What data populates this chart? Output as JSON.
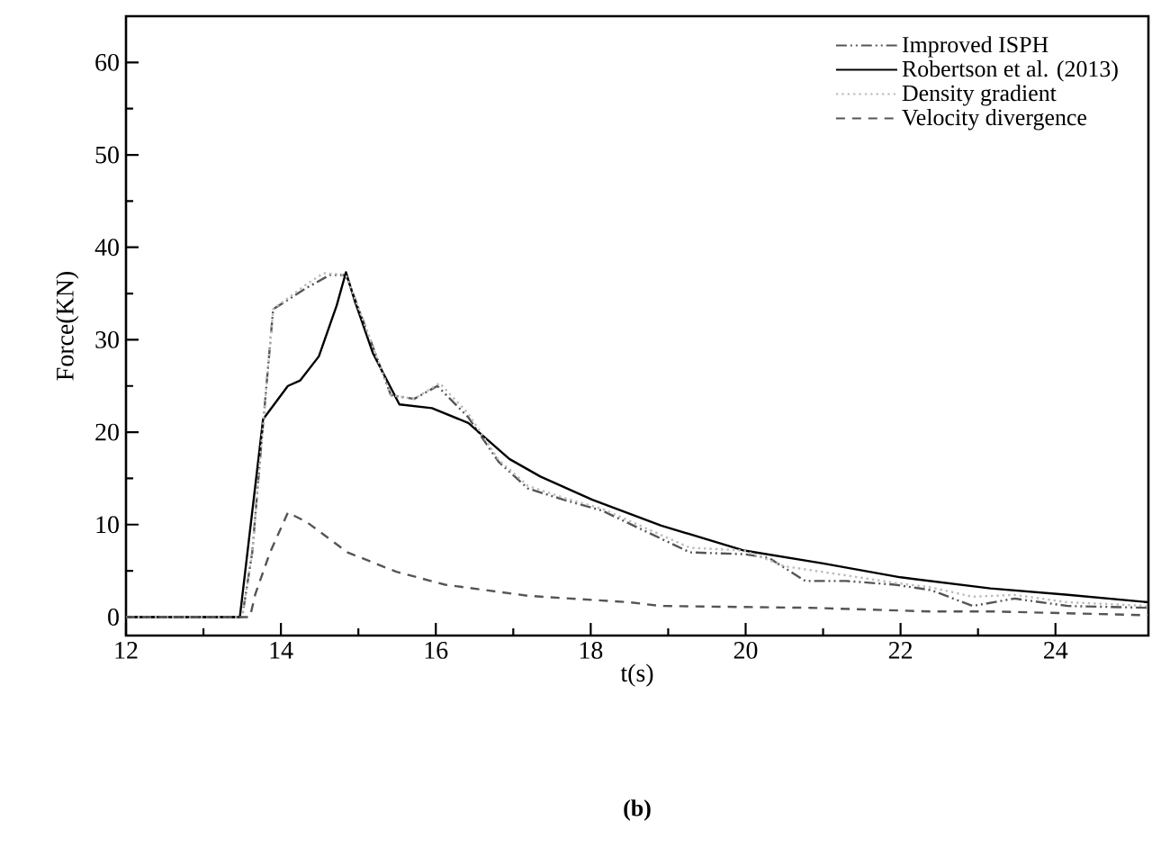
{
  "chart_data": {
    "type": "line",
    "xlabel": "t(s)",
    "ylabel": "Force(KN)",
    "annotations": [
      "(b)"
    ],
    "xlim": [
      12,
      25.2
    ],
    "ylim": [
      -2,
      65
    ],
    "xticks": [
      12,
      14,
      16,
      18,
      20,
      22,
      24
    ],
    "yticks": [
      0,
      10,
      20,
      30,
      40,
      50,
      60
    ],
    "legend": "top right",
    "grid": false,
    "series": [
      {
        "name": "Improved ISPH",
        "color": "#555555",
        "line_style": "dashdotdot",
        "x": [
          12,
          13.5,
          13.63,
          13.74,
          13.9,
          14.33,
          14.63,
          14.84,
          15.02,
          15.42,
          15.72,
          16.02,
          16.42,
          16.81,
          17.19,
          17.65,
          18.15,
          19.28,
          19.98,
          20.3,
          20.77,
          21.3,
          21.93,
          22.4,
          22.93,
          23.47,
          24.16,
          25.2
        ],
        "values": [
          0,
          0,
          7,
          18,
          33.3,
          35.6,
          37,
          37,
          33,
          24,
          23.6,
          25,
          21.6,
          16.8,
          13.9,
          12.7,
          11.5,
          7,
          6.8,
          6.4,
          3.9,
          3.9,
          3.5,
          2.9,
          1.2,
          2,
          1.2,
          1
        ]
      },
      {
        "name": "Robertson et al. (2013)",
        "color": "#000000",
        "line_style": "solid",
        "x": [
          12,
          13.47,
          13.77,
          14.09,
          14.25,
          14.49,
          14.72,
          14.84,
          14.95,
          15.19,
          15.53,
          15.95,
          16.42,
          16.95,
          17.35,
          18.02,
          18.91,
          19.98,
          21,
          22,
          23.16,
          24.16,
          25.2
        ],
        "values": [
          0,
          0,
          21.4,
          25,
          25.6,
          28.2,
          33.7,
          37.3,
          34.3,
          28.5,
          23,
          22.6,
          21,
          17.1,
          15.2,
          12.7,
          9.9,
          7.2,
          5.8,
          4.3,
          3.1,
          2.4,
          1.6
        ]
      },
      {
        "name": "Density gradient",
        "color": "#bbbbbb",
        "line_style": "dotted",
        "x": [
          12,
          13.5,
          13.63,
          13.74,
          13.9,
          14.33,
          14.55,
          14.84,
          15.02,
          15.42,
          15.72,
          16.05,
          16.42,
          16.81,
          17.19,
          17.65,
          18.15,
          19.28,
          19.98,
          20.5,
          21.3,
          21.93,
          22.4,
          22.93,
          23.47,
          24.16,
          25.2
        ],
        "values": [
          0,
          0,
          7,
          18,
          33.3,
          36,
          37.2,
          37,
          33,
          24,
          23.6,
          25.3,
          22,
          17,
          14.2,
          12.9,
          11.7,
          7.5,
          7.2,
          5.5,
          4.5,
          3.7,
          3.2,
          2.2,
          2.4,
          1.6,
          1.2
        ]
      },
      {
        "name": "Velocity divergence",
        "color": "#555555",
        "line_style": "dashed",
        "x": [
          12,
          13.6,
          13.67,
          13.86,
          14.09,
          14.33,
          14.86,
          15.49,
          16.12,
          17.19,
          18.5,
          18.9,
          20.84,
          22.4,
          23.23,
          25.2
        ],
        "values": [
          0,
          0,
          2.5,
          7,
          11.3,
          10.3,
          7,
          4.9,
          3.5,
          2.3,
          1.6,
          1.2,
          1,
          0.6,
          0.6,
          0.2
        ]
      }
    ]
  }
}
